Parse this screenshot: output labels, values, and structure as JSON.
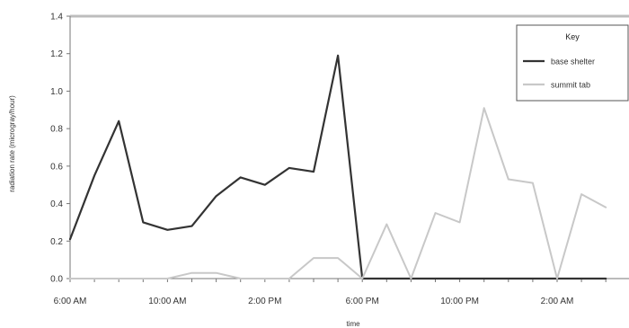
{
  "chart_data": {
    "type": "line",
    "xlabel": "time",
    "ylabel": "radiation rate (microgray/hour)",
    "ylim": [
      0,
      1.4
    ],
    "yticks": [
      "0.0",
      "0.2",
      "0.4",
      "0.6",
      "0.8",
      "1.0",
      "1.2",
      "1.4"
    ],
    "x": [
      "6:00 AM",
      "7:00 AM",
      "8:00 AM",
      "9:00 AM",
      "10:00 AM",
      "11:00 AM",
      "12:00 PM",
      "1:00 PM",
      "2:00 PM",
      "3:00 PM",
      "4:00 PM",
      "5:00 PM",
      "6:00 PM",
      "7:00 PM",
      "8:00 PM",
      "9:00 PM",
      "10:00 PM",
      "11:00 PM",
      "12:00 AM",
      "1:00 AM",
      "2:00 AM",
      "3:00 AM",
      "4:00 AM"
    ],
    "xticks": [
      "6:00 AM",
      "10:00 AM",
      "2:00 PM",
      "6:00 PM",
      "10:00 PM",
      "2:00 AM"
    ],
    "legend": {
      "title": "Key",
      "position": "top-right"
    },
    "series": [
      {
        "name": "base shelter",
        "color": "#333333",
        "values": [
          0.21,
          0.55,
          0.84,
          0.3,
          0.26,
          0.28,
          0.44,
          0.54,
          0.5,
          0.59,
          0.57,
          1.19,
          0.0,
          0.0,
          0.0,
          0.0,
          0.0,
          0.0,
          0.0,
          0.0,
          0.0,
          0.0,
          0.0
        ]
      },
      {
        "name": "summit tab",
        "color": "#c8c8c8",
        "values": [
          0.0,
          0.0,
          0.0,
          0.0,
          0.0,
          0.03,
          0.03,
          0.0,
          0.0,
          0.0,
          0.11,
          0.11,
          0.0,
          0.29,
          0.0,
          0.35,
          0.3,
          0.91,
          0.53,
          0.51,
          0.0,
          0.45,
          0.38
        ]
      }
    ]
  }
}
